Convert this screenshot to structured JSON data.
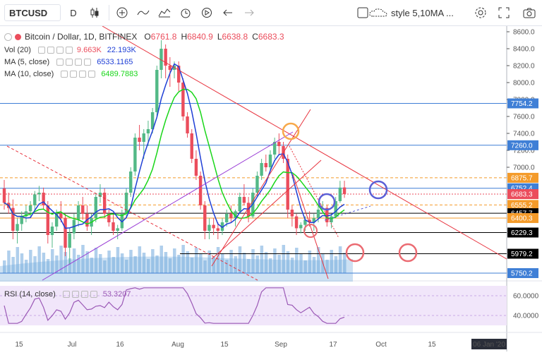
{
  "toolbar": {
    "symbol": "BTCUSD",
    "interval": "D",
    "style_label": "style 5,10MA ..."
  },
  "legend": {
    "title": "Bitcoin / Dollar, 1D, BITFINEX",
    "o_label": "O",
    "o_value": "6761.8",
    "h_label": "H",
    "h_value": "6840.9",
    "l_label": "L",
    "l_value": "6638.8",
    "c_label": "C",
    "c_value": "6683.3",
    "vol_name": "Vol (20)",
    "vol_value1": "9.663K",
    "vol_value2": "22.193K",
    "ma5_name": "MA (5, close)",
    "ma5_value": "6533.1165",
    "ma10_name": "MA (10, close)",
    "ma10_value": "6489.7883",
    "rsi_name": "RSI (14, close)",
    "rsi_value": "53.3207"
  },
  "colors": {
    "up": "#53b987",
    "down": "#eb4d5c",
    "ma5": "#1f3fd6",
    "ma10": "#19d619",
    "trend_red": "#e8343f",
    "trend_purple": "#9b3fd6",
    "level_blue": "#3f7fd6",
    "level_orange": "#f49b2a",
    "level_black": "#000000",
    "rsi": "#9b59b6",
    "volume": "#6fa8dc",
    "circle_blue": "#5b5fd6",
    "circle_red": "#eb6b72",
    "circle_orange": "#f7a94a"
  },
  "chart_data": {
    "type": "candlestick",
    "price_ticks": [
      8600,
      8400,
      8200,
      8000,
      7800,
      7600,
      7400,
      7200,
      7000
    ],
    "price_tick_labels": [
      "8600.0",
      "8400.0",
      "8200.0",
      "8000.0",
      "7800.0",
      "7600.0",
      "7400.0",
      "7200.0",
      "7000.0"
    ],
    "price_range": [
      5700,
      8650
    ],
    "time_labels": [
      "15",
      "Jul",
      "16",
      "Aug",
      "15",
      "Sep",
      "17",
      "Oct",
      "15"
    ],
    "time_label_badge": "06 Jan '20",
    "levels": [
      {
        "value": 7754.2,
        "label": "7754.2",
        "color": "#3f7fd6",
        "style": "solid"
      },
      {
        "value": 7260.0,
        "label": "7260.0",
        "color": "#3f7fd6",
        "style": "solid"
      },
      {
        "value": 6875.7,
        "label": "6875.7",
        "color": "#f49b2a",
        "style": "dashed"
      },
      {
        "value": 6752.4,
        "label": "6752.4",
        "color": "#3f7fd6",
        "style": "solid"
      },
      {
        "value": 6683.3,
        "label": "6683.3",
        "color": "#eb4d5c",
        "style": "dotted"
      },
      {
        "value": 6555.2,
        "label": "6555.2",
        "color": "#f49b2a",
        "style": "dashed"
      },
      {
        "value": 6457.7,
        "label": "6457.7",
        "color": "#000000",
        "style": "solid"
      },
      {
        "value": 6400.3,
        "label": "6400.3",
        "color": "#f49b2a",
        "style": "solid"
      },
      {
        "value": 6229.3,
        "label": "6229.3",
        "color": "#000000",
        "style": "solid"
      },
      {
        "value": 5979.2,
        "label": "5979.2",
        "color": "#000000",
        "style": "solid"
      },
      {
        "value": 5750.2,
        "label": "5750.2",
        "color": "#3f7fd6",
        "style": "solid"
      }
    ],
    "candles": [
      [
        6750,
        6850,
        6500,
        6580
      ],
      [
        6580,
        6700,
        6450,
        6520
      ],
      [
        6520,
        6620,
        6150,
        6250
      ],
      [
        6250,
        6400,
        6100,
        6330
      ],
      [
        6330,
        6480,
        6250,
        6420
      ],
      [
        6420,
        6550,
        6350,
        6480
      ],
      [
        6480,
        6600,
        6420,
        6550
      ],
      [
        6550,
        6720,
        6500,
        6680
      ],
      [
        6680,
        6780,
        6600,
        6700
      ],
      [
        6700,
        6760,
        6500,
        6550
      ],
      [
        6550,
        6600,
        6100,
        6200
      ],
      [
        6200,
        6350,
        6050,
        6300
      ],
      [
        6300,
        6500,
        6250,
        6450
      ],
      [
        6450,
        6600,
        6350,
        6400
      ],
      [
        6400,
        6450,
        5950,
        6050
      ],
      [
        6050,
        6280,
        5850,
        6220
      ],
      [
        6220,
        6450,
        6150,
        6380
      ],
      [
        6380,
        6600,
        6300,
        6550
      ],
      [
        6550,
        6650,
        6380,
        6450
      ],
      [
        6450,
        6550,
        6250,
        6300
      ],
      [
        6300,
        6450,
        6200,
        6400
      ],
      [
        6400,
        6700,
        6350,
        6650
      ],
      [
        6650,
        6800,
        6580,
        6700
      ],
      [
        6700,
        6750,
        6400,
        6450
      ],
      [
        6450,
        6500,
        6300,
        6350
      ],
      [
        6350,
        6450,
        6200,
        6250
      ],
      [
        6250,
        6320,
        6150,
        6280
      ],
      [
        6280,
        6500,
        6250,
        6450
      ],
      [
        6450,
        6750,
        6400,
        6700
      ],
      [
        6700,
        7000,
        6650,
        6950
      ],
      [
        6950,
        7400,
        6900,
        7350
      ],
      [
        7350,
        7500,
        7200,
        7300
      ],
      [
        7300,
        7450,
        7100,
        7400
      ],
      [
        7400,
        7550,
        7250,
        7450
      ],
      [
        7450,
        7700,
        7400,
        7650
      ],
      [
        7650,
        8200,
        7600,
        8150
      ],
      [
        8150,
        8500,
        8050,
        8400
      ],
      [
        8400,
        8450,
        8050,
        8200
      ],
      [
        8200,
        8300,
        7950,
        8150
      ],
      [
        8150,
        8250,
        8050,
        8200
      ],
      [
        8200,
        8250,
        7900,
        8000
      ],
      [
        8000,
        8050,
        7550,
        7600
      ],
      [
        7600,
        7650,
        7350,
        7400
      ],
      [
        7400,
        7450,
        7050,
        7100
      ],
      [
        7100,
        7200,
        6850,
        6900
      ],
      [
        6900,
        6950,
        6500,
        6550
      ],
      [
        6550,
        6600,
        6150,
        6250
      ],
      [
        6250,
        6400,
        6150,
        6320
      ],
      [
        6320,
        6400,
        6200,
        6280
      ],
      [
        6280,
        6350,
        6150,
        6250
      ],
      [
        6250,
        6400,
        6200,
        6350
      ],
      [
        6350,
        6500,
        6300,
        6450
      ],
      [
        6450,
        6550,
        6350,
        6400
      ],
      [
        6400,
        6500,
        6300,
        6480
      ],
      [
        6480,
        6700,
        6450,
        6650
      ],
      [
        6650,
        6800,
        6550,
        6580
      ],
      [
        6580,
        6650,
        6350,
        6420
      ],
      [
        6420,
        6750,
        6400,
        6700
      ],
      [
        6700,
        6950,
        6650,
        6900
      ],
      [
        6900,
        7100,
        6850,
        7050
      ],
      [
        7050,
        7150,
        6950,
        7000
      ],
      [
        7000,
        7200,
        6950,
        7150
      ],
      [
        7150,
        7350,
        7100,
        7300
      ],
      [
        7300,
        7400,
        7150,
        7250
      ],
      [
        7250,
        7300,
        7050,
        7100
      ],
      [
        7100,
        7150,
        6400,
        6500
      ],
      [
        6500,
        6550,
        6300,
        6420
      ],
      [
        6420,
        6450,
        6200,
        6280
      ],
      [
        6280,
        6350,
        6220,
        6320
      ],
      [
        6320,
        6420,
        6250,
        6380
      ],
      [
        6380,
        6480,
        6300,
        6350
      ],
      [
        6350,
        6450,
        6250,
        6400
      ],
      [
        6400,
        6550,
        6350,
        6500
      ],
      [
        6500,
        6600,
        6450,
        6520
      ],
      [
        6520,
        6550,
        6300,
        6350
      ],
      [
        6350,
        6450,
        6280,
        6420
      ],
      [
        6420,
        6650,
        6400,
        6600
      ],
      [
        6600,
        6840,
        6580,
        6760
      ],
      [
        6761.8,
        6840.9,
        6638.8,
        6683.3
      ]
    ],
    "rsi_ticks": [
      60,
      40
    ],
    "rsi_tick_labels": [
      "60.0000",
      "40.0000"
    ]
  }
}
